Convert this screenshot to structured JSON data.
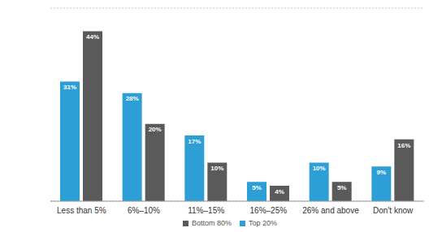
{
  "chart_data": {
    "type": "bar",
    "categories": [
      "Less than 5%",
      "6%–10%",
      "11%–15%",
      "16%–25%",
      "26% and above",
      "Don't know"
    ],
    "series": [
      {
        "name": "Top 20%",
        "color": "#2e9fd6",
        "values": [
          31,
          28,
          17,
          5,
          10,
          9
        ],
        "value_labels": [
          "31%",
          "28%",
          "17%",
          "5%",
          "10%",
          "9%"
        ]
      },
      {
        "name": "Bottom 80%",
        "color": "#5a5a5a",
        "values": [
          44,
          20,
          10,
          4,
          5,
          16
        ],
        "value_labels": [
          "44%",
          "20%",
          "10%",
          "4%",
          "5%",
          "16%"
        ]
      }
    ],
    "ylim": [
      0,
      50
    ],
    "yticks": [
      0,
      10,
      20,
      30,
      40,
      50
    ],
    "grid": true,
    "legend": "bottom",
    "data_labels": true,
    "tick_labels": "x"
  }
}
